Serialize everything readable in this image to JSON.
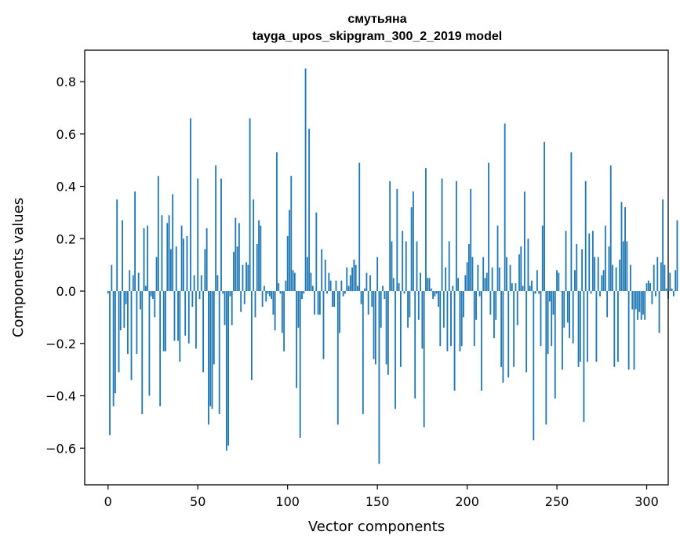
{
  "chart_data": {
    "type": "bar",
    "title": "смутьяна",
    "subtitle": "tayga_upos_skipgram_300_2_2019 model",
    "xlabel": "Vector components",
    "ylabel": "Components values",
    "xlim": [
      -13,
      312
    ],
    "ylim": [
      -0.74,
      0.92
    ],
    "xticks": [
      0,
      50,
      100,
      150,
      200,
      250,
      300
    ],
    "xtick_labels": [
      "0",
      "50",
      "100",
      "150",
      "200",
      "250",
      "300"
    ],
    "yticks": [
      -0.6,
      -0.4,
      -0.2,
      0.0,
      0.2,
      0.4,
      0.6,
      0.8
    ],
    "ytick_labels": [
      "−0.6",
      "−0.4",
      "−0.2",
      "0.0",
      "0.2",
      "0.4",
      "0.6",
      "0.8"
    ],
    "grid": false,
    "color": "#1f77b4",
    "x_start": 0,
    "values": [
      -0.01,
      -0.55,
      0.1,
      -0.44,
      -0.39,
      0.35,
      -0.31,
      -0.15,
      0.27,
      -0.14,
      -0.05,
      -0.24,
      0.08,
      -0.34,
      0.06,
      0.38,
      -0.24,
      0.07,
      -0.07,
      -0.47,
      0.24,
      0.02,
      0.25,
      -0.4,
      -0.02,
      -0.03,
      -0.1,
      0.13,
      0.44,
      -0.44,
      0.29,
      -0.23,
      -0.23,
      0.26,
      0.29,
      0.16,
      0.37,
      -0.19,
      0.17,
      -0.19,
      -0.27,
      0.25,
      0.2,
      -0.17,
      0.21,
      -0.2,
      0.66,
      -0.06,
      0.06,
      -0.22,
      0.43,
      -0.03,
      0.06,
      -0.31,
      0.16,
      0.24,
      -0.51,
      -0.44,
      -0.45,
      -0.28,
      0.48,
      0.06,
      -0.47,
      0.43,
      -0.01,
      -0.13,
      -0.61,
      -0.59,
      -0.02,
      -0.13,
      0.15,
      0.28,
      0.17,
      0.26,
      -0.08,
      0.1,
      -0.05,
      0.11,
      0.1,
      0.66,
      -0.34,
      0.35,
      -0.1,
      0.18,
      0.27,
      0.25,
      -0.06,
      0.02,
      -0.04,
      -0.01,
      -0.02,
      -0.03,
      -0.09,
      -0.15,
      0.53,
      0.03,
      -0.01,
      -0.16,
      -0.23,
      0.04,
      0.21,
      0.31,
      0.44,
      0.08,
      0.07,
      -0.37,
      -0.14,
      -0.56,
      -0.03,
      -0.01,
      0.85,
      0.13,
      0.62,
      0.07,
      0.02,
      -0.09,
      0.3,
      -0.09,
      -0.09,
      0.16,
      -0.26,
      0.12,
      -0.01,
      0.07,
      0.04,
      -0.06,
      -0.06,
      0.04,
      -0.51,
      -0.16,
      0.04,
      -0.02,
      -0.01,
      0.09,
      0.02,
      0.06,
      0.09,
      0.12,
      0.1,
      0.02,
      0.49,
      -0.05,
      -0.47,
      0.01,
      0.07,
      -0.09,
      0.06,
      -0.06,
      -0.26,
      -0.28,
      0.13,
      -0.66,
      -0.14,
      0.02,
      -0.03,
      -0.28,
      -0.32,
      0.42,
      0.19,
      0.05,
      -0.45,
      0.39,
      0.03,
      -0.29,
      0.23,
      -0.01,
      0.19,
      -0.14,
      -0.1,
      0.32,
      0.38,
      -0.41,
      0.19,
      -0.11,
      0.07,
      -0.22,
      -0.52,
      0.47,
      0.05,
      0.05,
      0.01,
      -0.03,
      -0.02,
      -0.01,
      -0.06,
      -0.21,
      0.43,
      -0.14,
      0.09,
      -0.23,
      0.19,
      -0.21,
      0.02,
      -0.38,
      0.42,
      0.05,
      -0.23,
      -0.21,
      -0.1,
      0.06,
      0.11,
      0.18,
      0.39,
      0.13,
      -0.21,
      -0.11,
      0.1,
      -0.02,
      -0.38,
      0.13,
      0.05,
      0.07,
      0.49,
      -0.09,
      0.09,
      -0.18,
      -0.11,
      0.25,
      0.09,
      -0.29,
      -0.35,
      0.64,
      0.13,
      -0.33,
      0.1,
      0.03,
      -0.29,
      0.03,
      -0.13,
      0.14,
      0.17,
      0.02,
      0.38,
      -0.31,
      0.2,
      0.02,
      0.04,
      -0.57,
      -0.01,
      0.08,
      -0.01,
      -0.21,
      0.25,
      0.57,
      -0.51,
      -0.24,
      -0.04,
      -0.21,
      -0.09,
      -0.41,
      0.08,
      0.07,
      0.0,
      -0.3,
      -0.14,
      0.23,
      -0.12,
      -0.18,
      0.53,
      -0.2,
      0.08,
      0.18,
      -0.29,
      -0.27,
      0.16,
      -0.5,
      0.42,
      -0.27,
      0.22,
      -0.01,
      0.23,
      0.13,
      -0.27,
      0.13,
      -0.02,
      0.06,
      0.08,
      0.25,
      -0.1,
      0.17,
      0.48,
      0.1,
      -0.29,
      0.09,
      -0.27,
      0.12,
      0.34,
      0.19,
      0.32,
      0.19,
      -0.3,
      0.1,
      -0.07,
      -0.3,
      -0.07,
      -0.11,
      -0.08,
      -0.11,
      -0.09,
      -0.11,
      0.03,
      0.04,
      0.03,
      -0.05,
      0.1,
      -0.02,
      0.13,
      -0.16,
      0.11,
      0.35,
      0.1,
      0.01,
      -0.03,
      0.07,
      0.01,
      -0.02,
      0.08,
      0.27
    ]
  }
}
